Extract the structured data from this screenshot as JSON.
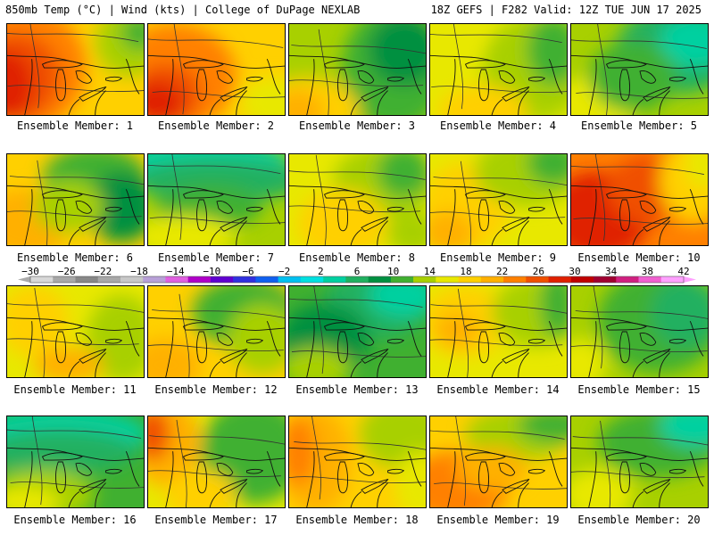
{
  "header": {
    "left": "850mb Temp (°C) | Wind (kts) | College of DuPage NEXLAB",
    "right": "18Z GEFS | F282 Valid: 12Z TUE JUN 17 2025"
  },
  "colorbar": {
    "ticks": [
      "-30",
      "-26",
      "-22",
      "-18",
      "-14",
      "-10",
      "-6",
      "-2",
      "2",
      "6",
      "10",
      "14",
      "18",
      "22",
      "26",
      "30",
      "34",
      "38",
      "42"
    ],
    "colors": [
      "#d8d8d8",
      "#a8a8a8",
      "#888888",
      "#a8a8a8",
      "#c8c8c8",
      "#b8a0d8",
      "#e060e0",
      "#b000c8",
      "#6000d0",
      "#3030e0",
      "#1060f0",
      "#00c0f0",
      "#00e0e0",
      "#00d0a0",
      "#20b060",
      "#009040",
      "#40b030",
      "#a8d000",
      "#e8e800",
      "#ffd000",
      "#ffb000",
      "#ff8000",
      "#f05000",
      "#e02000",
      "#c00000",
      "#a00030",
      "#d02080",
      "#f060d0",
      "#ffa0ff"
    ]
  },
  "members": [
    {
      "label": "Ensemble Member: 1"
    },
    {
      "label": "Ensemble Member: 2"
    },
    {
      "label": "Ensemble Member: 3"
    },
    {
      "label": "Ensemble Member: 4"
    },
    {
      "label": "Ensemble Member: 5"
    },
    {
      "label": "Ensemble Member: 6"
    },
    {
      "label": "Ensemble Member: 7"
    },
    {
      "label": "Ensemble Member: 8"
    },
    {
      "label": "Ensemble Member: 9"
    },
    {
      "label": "Ensemble Member: 10"
    },
    {
      "label": "Ensemble Member: 11"
    },
    {
      "label": "Ensemble Member: 12"
    },
    {
      "label": "Ensemble Member: 13"
    },
    {
      "label": "Ensemble Member: 14"
    },
    {
      "label": "Ensemble Member: 15"
    },
    {
      "label": "Ensemble Member: 16"
    },
    {
      "label": "Ensemble Member: 17"
    },
    {
      "label": "Ensemble Member: 18"
    },
    {
      "label": "Ensemble Member: 19"
    },
    {
      "label": "Ensemble Member: 20"
    }
  ]
}
